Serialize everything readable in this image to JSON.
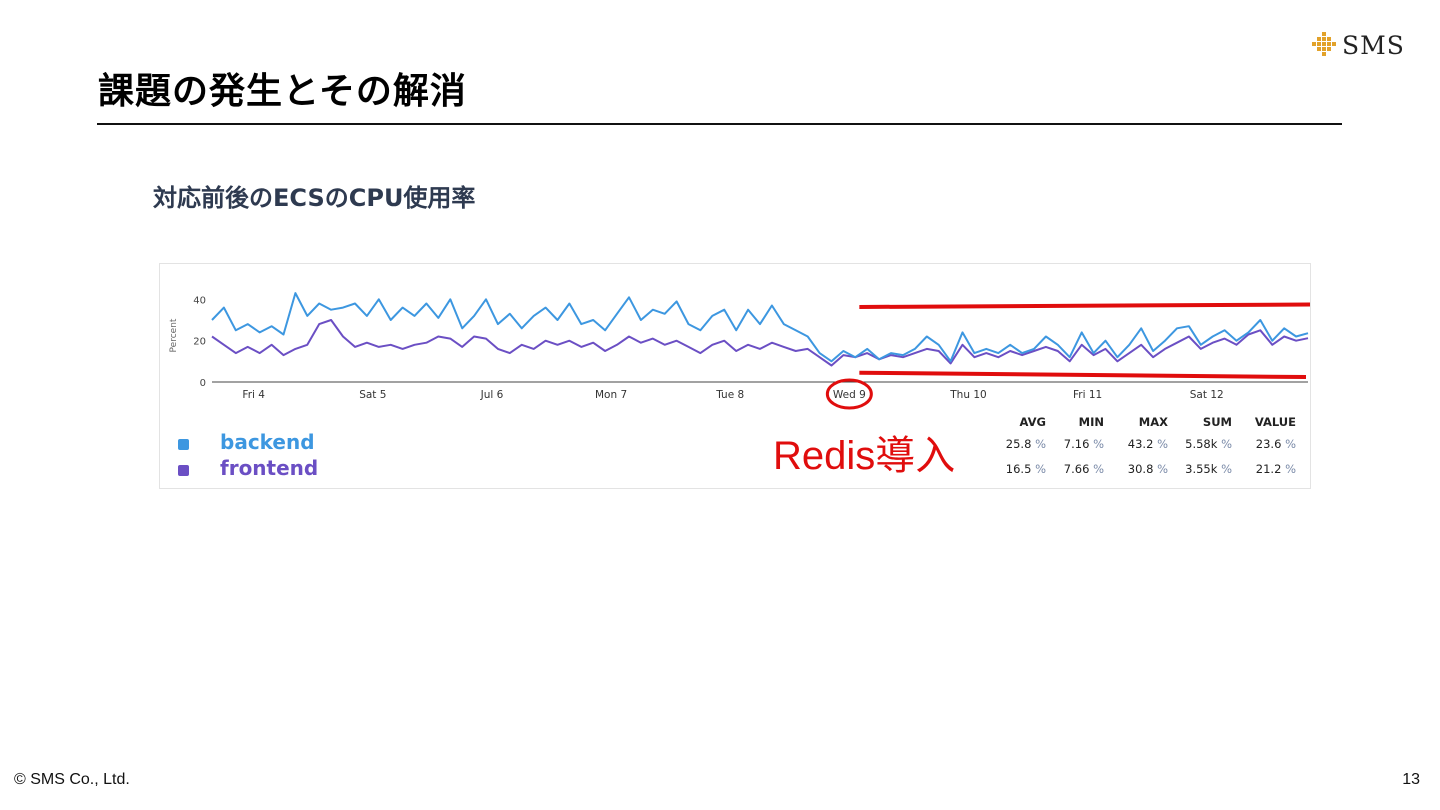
{
  "slide": {
    "title": "課題の発生とその解消",
    "logo_text": "SMS",
    "subtitle": "対応前後のECSのCPU使用率",
    "annotation": "Redis導入",
    "footer": "© SMS Co., Ltd.",
    "page_number": "13"
  },
  "colors": {
    "backend": "#3d97e0",
    "frontend": "#6b4fc4",
    "annotation": "#e00d0d"
  },
  "stats": {
    "headers": [
      "AVG",
      "MIN",
      "MAX",
      "SUM",
      "VALUE"
    ],
    "unit": "%",
    "rows": [
      {
        "series": "backend",
        "values": [
          "25.8",
          "7.16",
          "43.2",
          "5.58k",
          "23.6"
        ]
      },
      {
        "series": "frontend",
        "values": [
          "16.5",
          "7.66",
          "30.8",
          "3.55k",
          "21.2"
        ]
      }
    ]
  },
  "chart_data": {
    "type": "line",
    "ylabel": "Percent",
    "ylim": [
      0,
      45
    ],
    "yticks": [
      0,
      20,
      40
    ],
    "xlim": [
      0,
      9.2
    ],
    "xticks": [
      {
        "label": "Fri 4",
        "x": 0.35
      },
      {
        "label": "Sat 5",
        "x": 1.35
      },
      {
        "label": "Jul 6",
        "x": 2.35
      },
      {
        "label": "Mon 7",
        "x": 3.35
      },
      {
        "label": "Tue 8",
        "x": 4.35
      },
      {
        "label": "Wed 9",
        "x": 5.35
      },
      {
        "label": "Thu 10",
        "x": 6.35
      },
      {
        "label": "Fri 11",
        "x": 7.35
      },
      {
        "label": "Sat 12",
        "x": 8.35
      }
    ],
    "highlighted_tick": "Wed 9",
    "legend_position": "bottom-left",
    "series": [
      {
        "name": "backend",
        "x": [
          0,
          0.1,
          0.2,
          0.3,
          0.4,
          0.5,
          0.6,
          0.7,
          0.8,
          0.9,
          1.0,
          1.1,
          1.2,
          1.3,
          1.4,
          1.5,
          1.6,
          1.7,
          1.8,
          1.9,
          2.0,
          2.1,
          2.2,
          2.3,
          2.4,
          2.5,
          2.6,
          2.7,
          2.8,
          2.9,
          3.0,
          3.1,
          3.2,
          3.3,
          3.4,
          3.5,
          3.6,
          3.7,
          3.8,
          3.9,
          4.0,
          4.1,
          4.2,
          4.3,
          4.4,
          4.5,
          4.6,
          4.7,
          4.8,
          4.9,
          5.0,
          5.1,
          5.2,
          5.3,
          5.4,
          5.5,
          5.6,
          5.7,
          5.8,
          5.9,
          6.0,
          6.1,
          6.2,
          6.3,
          6.4,
          6.5,
          6.6,
          6.7,
          6.8,
          6.9,
          7.0,
          7.1,
          7.2,
          7.3,
          7.4,
          7.5,
          7.6,
          7.7,
          7.8,
          7.9,
          8.0,
          8.1,
          8.2,
          8.3,
          8.4,
          8.5,
          8.6,
          8.7,
          8.8,
          8.9,
          9.0,
          9.1,
          9.2
        ],
        "values": [
          30,
          36,
          25,
          28,
          24,
          27,
          23,
          43,
          32,
          38,
          35,
          36,
          38,
          32,
          40,
          30,
          36,
          32,
          38,
          31,
          40,
          26,
          32,
          40,
          28,
          33,
          26,
          32,
          36,
          30,
          38,
          28,
          30,
          25,
          33,
          41,
          30,
          35,
          33,
          39,
          28,
          25,
          32,
          35,
          25,
          35,
          28,
          37,
          28,
          25,
          22,
          14,
          10,
          15,
          12,
          16,
          11,
          14,
          13,
          16,
          22,
          18,
          10,
          24,
          14,
          16,
          14,
          18,
          14,
          16,
          22,
          18,
          12,
          24,
          14,
          20,
          12,
          18,
          26,
          15,
          20,
          26,
          27,
          18,
          22,
          25,
          20,
          24,
          30,
          20,
          26,
          22,
          23.6
        ]
      },
      {
        "name": "frontend",
        "x": [
          0,
          0.1,
          0.2,
          0.3,
          0.4,
          0.5,
          0.6,
          0.7,
          0.8,
          0.9,
          1.0,
          1.1,
          1.2,
          1.3,
          1.4,
          1.5,
          1.6,
          1.7,
          1.8,
          1.9,
          2.0,
          2.1,
          2.2,
          2.3,
          2.4,
          2.5,
          2.6,
          2.7,
          2.8,
          2.9,
          3.0,
          3.1,
          3.2,
          3.3,
          3.4,
          3.5,
          3.6,
          3.7,
          3.8,
          3.9,
          4.0,
          4.1,
          4.2,
          4.3,
          4.4,
          4.5,
          4.6,
          4.7,
          4.8,
          4.9,
          5.0,
          5.1,
          5.2,
          5.3,
          5.4,
          5.5,
          5.6,
          5.7,
          5.8,
          5.9,
          6.0,
          6.1,
          6.2,
          6.3,
          6.4,
          6.5,
          6.6,
          6.7,
          6.8,
          6.9,
          7.0,
          7.1,
          7.2,
          7.3,
          7.4,
          7.5,
          7.6,
          7.7,
          7.8,
          7.9,
          8.0,
          8.1,
          8.2,
          8.3,
          8.4,
          8.5,
          8.6,
          8.7,
          8.8,
          8.9,
          9.0,
          9.1,
          9.2
        ],
        "values": [
          22,
          18,
          14,
          17,
          14,
          18,
          13,
          16,
          18,
          28,
          30,
          22,
          17,
          19,
          17,
          18,
          16,
          18,
          19,
          22,
          21,
          17,
          22,
          21,
          16,
          14,
          18,
          16,
          20,
          18,
          20,
          17,
          19,
          15,
          18,
          22,
          19,
          21,
          18,
          20,
          17,
          14,
          18,
          20,
          15,
          18,
          16,
          19,
          17,
          15,
          16,
          12,
          8,
          13,
          12,
          14,
          11,
          13,
          12,
          14,
          16,
          15,
          9,
          18,
          12,
          14,
          12,
          15,
          13,
          15,
          17,
          15,
          10,
          18,
          13,
          16,
          10,
          14,
          18,
          12,
          16,
          19,
          22,
          16,
          19,
          21,
          18,
          23,
          25,
          18,
          22,
          20,
          21.2
        ]
      }
    ]
  }
}
